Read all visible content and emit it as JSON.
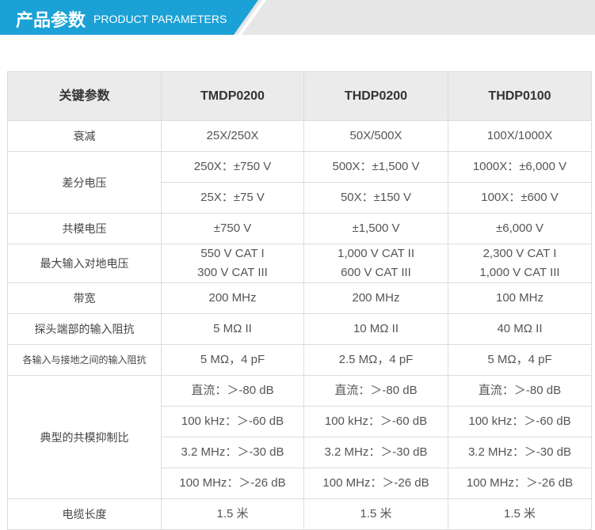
{
  "header": {
    "title": "产品参数",
    "subtitle": "PRODUCT PARAMETERS"
  },
  "table": {
    "columns": [
      "关键参数",
      "TMDP0200",
      "THDP0200",
      "THDP0100"
    ],
    "rows": [
      {
        "label": "衰减",
        "subrows": [
          [
            "25X/250X",
            "50X/500X",
            "100X/1000X"
          ]
        ]
      },
      {
        "label": "差分电压",
        "subrows": [
          [
            "250X：±750 V",
            "500X：±1,500 V",
            "1000X：±6,000 V"
          ],
          [
            "25X：±75 V",
            "50X：±150 V",
            "100X：±600 V"
          ]
        ]
      },
      {
        "label": "共模电压",
        "subrows": [
          [
            "±750 V",
            "±1,500 V",
            "±6,000 V"
          ]
        ]
      },
      {
        "label": "最大输入对地电压",
        "subrows": [
          [
            [
              "550 V CAT I",
              "300 V CAT III"
            ],
            [
              "1,000 V CAT II",
              "600 V CAT III"
            ],
            [
              "2,300 V CAT I",
              "1,000 V CAT III"
            ]
          ]
        ]
      },
      {
        "label": "带宽",
        "subrows": [
          [
            "200 MHz",
            "200 MHz",
            "100 MHz"
          ]
        ]
      },
      {
        "label": "探头端部的输入阻抗",
        "subrows": [
          [
            "5 MΩ II",
            "10 MΩ II",
            "40 MΩ II"
          ]
        ]
      },
      {
        "label": "各输入与接地之间的输入阻抗",
        "subrows": [
          [
            "5 MΩ，4 pF",
            "2.5 MΩ，4 pF",
            "5 MΩ，4 pF"
          ]
        ]
      },
      {
        "label": "典型的共模抑制比",
        "subrows": [
          [
            "直流：＞-80 dB",
            "直流：＞-80 dB",
            "直流：＞-80 dB"
          ],
          [
            "100 kHz：＞-60 dB",
            "100 kHz：＞-60 dB",
            "100 kHz：＞-60 dB"
          ],
          [
            "3.2 MHz：＞-30 dB",
            "3.2 MHz：＞-30 dB",
            "3.2 MHz：＞-30 dB"
          ],
          [
            "100 MHz：＞-26 dB",
            "100 MHz：＞-26 dB",
            "100 MHz：＞-26 dB"
          ]
        ]
      },
      {
        "label": "电缆长度",
        "subrows": [
          [
            "1.5 米",
            "1.5 米",
            "1.5 米"
          ]
        ]
      }
    ]
  }
}
